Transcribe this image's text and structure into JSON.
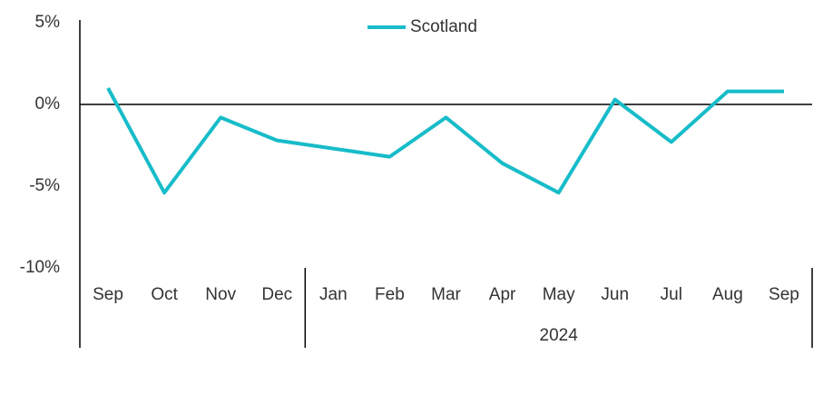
{
  "chart_data": {
    "type": "line",
    "category_groups": [
      {
        "categories": [
          "Sep",
          "Oct",
          "Nov",
          "Dec"
        ]
      },
      {
        "label": "2024",
        "categories": [
          "Jan",
          "Feb",
          "Mar",
          "Apr",
          "May",
          "Jun",
          "Jul",
          "Aug",
          "Sep"
        ]
      }
    ],
    "series": [
      {
        "name": "Scotland",
        "color": "#17BCC9",
        "values": [
          1.0,
          -5.4,
          -0.8,
          -2.2,
          -2.7,
          -3.2,
          -0.8,
          -3.6,
          -5.4,
          0.3,
          -2.3,
          0.8,
          0.8
        ]
      }
    ],
    "ylim": [
      -10,
      5
    ],
    "yticks": [
      {
        "value": -10,
        "label": "-10%"
      },
      {
        "value": -5,
        "label": "-5%"
      },
      {
        "value": 0,
        "label": "0%"
      },
      {
        "value": 5,
        "label": "5%"
      }
    ],
    "legend": "top"
  }
}
